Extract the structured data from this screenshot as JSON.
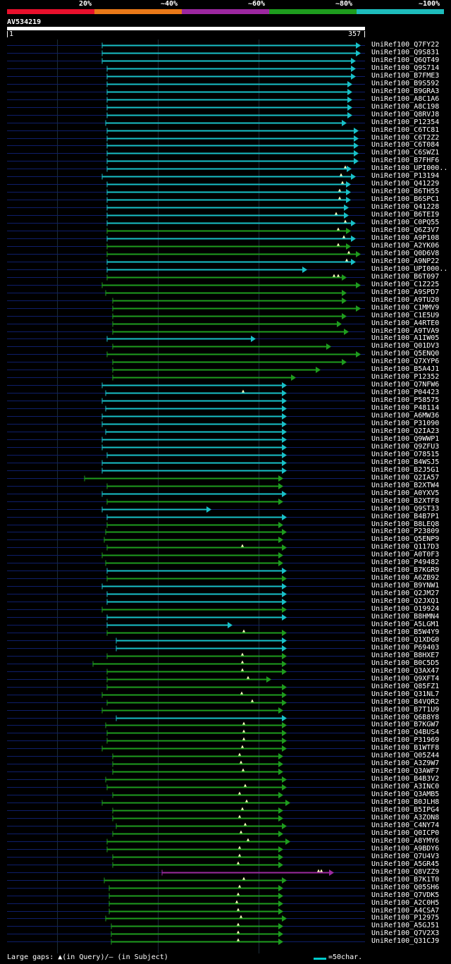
{
  "legend": [
    {
      "label": "20%",
      "color": "#e8102c"
    },
    {
      "label": "~40%",
      "color": "#e87818"
    },
    {
      "label": "~60%",
      "color": "#9c27a0"
    },
    {
      "label": "~80%",
      "color": "#1e9c1e"
    },
    {
      "label": "~100%",
      "color": "#1ebcbc"
    }
  ],
  "query": {
    "id": "AV534219",
    "start": "1",
    "end": "357"
  },
  "footer": {
    "gap_note": "Large gaps: ▲(in Query)/— (in Subject)",
    "scale_note": "=50char."
  },
  "hits": [
    {
      "label": "UniRef100_Q7FY22",
      "s": 145,
      "e": 512,
      "c": "#18c0c8",
      "m": []
    },
    {
      "label": "UniRef100_Q9S831",
      "s": 145,
      "e": 512,
      "c": "#18c0c8",
      "m": []
    },
    {
      "label": "UniRef100_Q6QT49",
      "s": 145,
      "e": 505,
      "c": "#18c0c8",
      "m": []
    },
    {
      "label": "UniRef100_Q9S714",
      "s": 152,
      "e": 505,
      "c": "#18c0c8",
      "m": []
    },
    {
      "label": "UniRef100_B7FME3",
      "s": 152,
      "e": 505,
      "c": "#18c0c8",
      "m": []
    },
    {
      "label": "UniRef100_B9S592",
      "s": 152,
      "e": 500,
      "c": "#18c0c8",
      "m": []
    },
    {
      "label": "UniRef100_B9GRA3",
      "s": 152,
      "e": 500,
      "c": "#18c0c8",
      "m": []
    },
    {
      "label": "UniRef100_A8C1A6",
      "s": 152,
      "e": 500,
      "c": "#18c0c8",
      "m": []
    },
    {
      "label": "UniRef100_A8C198",
      "s": 152,
      "e": 500,
      "c": "#18c0c8",
      "m": []
    },
    {
      "label": "UniRef100_Q8RVJ8",
      "s": 152,
      "e": 500,
      "c": "#18c0c8",
      "m": []
    },
    {
      "label": "UniRef100_P12354",
      "s": 150,
      "e": 492,
      "c": "#18c0c8",
      "m": []
    },
    {
      "label": "UniRef100_C6TC81",
      "s": 152,
      "e": 509,
      "c": "#18c0c8",
      "m": []
    },
    {
      "label": "UniRef100_C6T2Z2",
      "s": 152,
      "e": 509,
      "c": "#18c0c8",
      "m": []
    },
    {
      "label": "UniRef100_C6T084",
      "s": 152,
      "e": 509,
      "c": "#18c0c8",
      "m": []
    },
    {
      "label": "UniRef100_C6SWZ1",
      "s": 152,
      "e": 509,
      "c": "#18c0c8",
      "m": []
    },
    {
      "label": "UniRef100_B7FHF6",
      "s": 152,
      "e": 509,
      "c": "#18c0c8",
      "m": []
    },
    {
      "label": "UniRef100_UPI000..",
      "s": 152,
      "e": 499,
      "c": "#18c0c8",
      "m": [
        490
      ]
    },
    {
      "label": "UniRef100_P13194",
      "s": 145,
      "e": 505,
      "c": "#18c0c8",
      "m": [
        484
      ]
    },
    {
      "label": "UniRef100_Q41229",
      "s": 152,
      "e": 498,
      "c": "#18c0c8",
      "m": [
        486
      ]
    },
    {
      "label": "UniRef100_B6TH55",
      "s": 152,
      "e": 498,
      "c": "#18c0c8",
      "m": [
        482
      ]
    },
    {
      "label": "UniRef100_B6SPC1",
      "s": 152,
      "e": 498,
      "c": "#18c0c8",
      "m": [
        482
      ]
    },
    {
      "label": "UniRef100_Q41228",
      "s": 152,
      "e": 495,
      "c": "#18c0c8",
      "m": []
    },
    {
      "label": "UniRef100_B6TEI9",
      "s": 152,
      "e": 495,
      "c": "#18c0c8",
      "m": [
        477
      ]
    },
    {
      "label": "UniRef100_C0PQ55",
      "s": 152,
      "e": 505,
      "c": "#18c0c8",
      "m": [
        490
      ]
    },
    {
      "label": "UniRef100_Q6Z3V7",
      "s": 152,
      "e": 498,
      "c": "#1e9c1e",
      "m": [
        480
      ]
    },
    {
      "label": "UniRef100_A9P108",
      "s": 152,
      "e": 505,
      "c": "#18c0c8",
      "m": [
        488
      ]
    },
    {
      "label": "UniRef100_A2YK06",
      "s": 152,
      "e": 498,
      "c": "#1e9c1e",
      "m": [
        480
      ]
    },
    {
      "label": "UniRef100_Q0D6V8",
      "s": 152,
      "e": 512,
      "c": "#1e9c1e",
      "m": [
        495
      ]
    },
    {
      "label": "UniRef100_A9NP22",
      "s": 152,
      "e": 505,
      "c": "#18c0c8",
      "m": [
        492
      ]
    },
    {
      "label": "UniRef100_UPI000..",
      "s": 152,
      "e": 436,
      "c": "#18c0c8",
      "m": []
    },
    {
      "label": "UniRef100_B6T097",
      "s": 152,
      "e": 492,
      "c": "#1e9c1e",
      "m": [
        474,
        480
      ]
    },
    {
      "label": "UniRef100_C1Z225",
      "s": 145,
      "e": 512,
      "c": "#1e9c1e",
      "m": []
    },
    {
      "label": "UniRef100_A9SPD7",
      "s": 150,
      "e": 492,
      "c": "#1e9c1e",
      "m": []
    },
    {
      "label": "UniRef100_A9TU20",
      "s": 160,
      "e": 492,
      "c": "#1e9c1e",
      "m": []
    },
    {
      "label": "UniRef100_C1MMV9",
      "s": 160,
      "e": 512,
      "c": "#1e9c1e",
      "m": []
    },
    {
      "label": "UniRef100_C1E5U9",
      "s": 160,
      "e": 492,
      "c": "#1e9c1e",
      "m": []
    },
    {
      "label": "UniRef100_A4RTE0",
      "s": 160,
      "e": 485,
      "c": "#1e9c1e",
      "m": []
    },
    {
      "label": "UniRef100_A9TVA9",
      "s": 160,
      "e": 495,
      "c": "#1e9c1e",
      "m": []
    },
    {
      "label": "UniRef100_A1IW05",
      "s": 152,
      "e": 363,
      "c": "#18c0c8",
      "m": []
    },
    {
      "label": "UniRef100_Q01DV3",
      "s": 160,
      "e": 470,
      "c": "#1e9c1e",
      "m": []
    },
    {
      "label": "UniRef100_Q5ENQ0",
      "s": 152,
      "e": 512,
      "c": "#1e9c1e",
      "m": []
    },
    {
      "label": "UniRef100_Q7XYP6",
      "s": 160,
      "e": 492,
      "c": "#1e9c1e",
      "m": []
    },
    {
      "label": "UniRef100_B5A4J1",
      "s": 160,
      "e": 455,
      "c": "#1e9c1e",
      "m": []
    },
    {
      "label": "UniRef100_P12352",
      "s": 160,
      "e": 420,
      "c": "#1e9c1e",
      "m": []
    },
    {
      "label": "UniRef100_Q7NFW6",
      "s": 145,
      "e": 407,
      "c": "#18c0c8",
      "m": []
    },
    {
      "label": "UniRef100_P04423",
      "s": 150,
      "e": 407,
      "c": "#18c0c8",
      "m": [
        345
      ]
    },
    {
      "label": "UniRef100_P58575",
      "s": 145,
      "e": 407,
      "c": "#18c0c8",
      "m": []
    },
    {
      "label": "UniRef100_P48114",
      "s": 150,
      "e": 407,
      "c": "#18c0c8",
      "m": []
    },
    {
      "label": "UniRef100_A6MW36",
      "s": 145,
      "e": 407,
      "c": "#18c0c8",
      "m": []
    },
    {
      "label": "UniRef100_P31090",
      "s": 145,
      "e": 407,
      "c": "#18c0c8",
      "m": []
    },
    {
      "label": "UniRef100_Q2IA23",
      "s": 150,
      "e": 407,
      "c": "#18c0c8",
      "m": []
    },
    {
      "label": "UniRef100_Q9WWP1",
      "s": 145,
      "e": 407,
      "c": "#18c0c8",
      "m": []
    },
    {
      "label": "UniRef100_Q9ZFU3",
      "s": 145,
      "e": 407,
      "c": "#18c0c8",
      "m": []
    },
    {
      "label": "UniRef100_O78515",
      "s": 152,
      "e": 407,
      "c": "#18c0c8",
      "m": []
    },
    {
      "label": "UniRef100_B4WSJ5",
      "s": 145,
      "e": 407,
      "c": "#18c0c8",
      "m": []
    },
    {
      "label": "UniRef100_B2J5G1",
      "s": 145,
      "e": 407,
      "c": "#18c0c8",
      "m": []
    },
    {
      "label": "UniRef100_Q2IA57",
      "s": 120,
      "e": 402,
      "c": "#1e9c1e",
      "m": []
    },
    {
      "label": "UniRef100_B2XTW4",
      "s": 152,
      "e": 402,
      "c": "#1e9c1e",
      "m": []
    },
    {
      "label": "UniRef100_A0YXV5",
      "s": 145,
      "e": 407,
      "c": "#18c0c8",
      "m": []
    },
    {
      "label": "UniRef100_B2XTF8",
      "s": 152,
      "e": 402,
      "c": "#1e9c1e",
      "m": []
    },
    {
      "label": "UniRef100_Q9ST33",
      "s": 145,
      "e": 300,
      "c": "#18c0c8",
      "m": []
    },
    {
      "label": "UniRef100_B4B7P1",
      "s": 152,
      "e": 407,
      "c": "#18c0c8",
      "m": []
    },
    {
      "label": "UniRef100_B8LEQ8",
      "s": 152,
      "e": 402,
      "c": "#1e9c1e",
      "m": []
    },
    {
      "label": "UniRef100_P23809",
      "s": 150,
      "e": 407,
      "c": "#1e9c1e",
      "m": []
    },
    {
      "label": "UniRef100_Q5ENP9",
      "s": 148,
      "e": 402,
      "c": "#1e9c1e",
      "m": []
    },
    {
      "label": "UniRef100_Q117D3",
      "s": 152,
      "e": 407,
      "c": "#1e9c1e",
      "m": [
        344
      ]
    },
    {
      "label": "UniRef100_A0T0F3",
      "s": 145,
      "e": 402,
      "c": "#1e9c1e",
      "m": []
    },
    {
      "label": "UniRef100_P49482",
      "s": 150,
      "e": 402,
      "c": "#1e9c1e",
      "m": []
    },
    {
      "label": "UniRef100_B7KGR9",
      "s": 152,
      "e": 407,
      "c": "#18c0c8",
      "m": []
    },
    {
      "label": "UniRef100_A6ZB92",
      "s": 152,
      "e": 407,
      "c": "#1e9c1e",
      "m": []
    },
    {
      "label": "UniRef100_B9YNW1",
      "s": 145,
      "e": 407,
      "c": "#18c0c8",
      "m": []
    },
    {
      "label": "UniRef100_Q2JM27",
      "s": 152,
      "e": 407,
      "c": "#18c0c8",
      "m": []
    },
    {
      "label": "UniRef100_Q2JXQ1",
      "s": 152,
      "e": 407,
      "c": "#18c0c8",
      "m": []
    },
    {
      "label": "UniRef100_O19924",
      "s": 145,
      "e": 407,
      "c": "#1e9c1e",
      "m": []
    },
    {
      "label": "UniRef100_B8HMN4",
      "s": 152,
      "e": 407,
      "c": "#18c0c8",
      "m": []
    },
    {
      "label": "UniRef100_A5LGM1",
      "s": 152,
      "e": 330,
      "c": "#18c0c8",
      "m": []
    },
    {
      "label": "UniRef100_B5W4Y9",
      "s": 152,
      "e": 407,
      "c": "#1e9c1e",
      "m": [
        346
      ]
    },
    {
      "label": "UniRef100_Q1XDG0",
      "s": 165,
      "e": 407,
      "c": "#18c0c8",
      "m": []
    },
    {
      "label": "UniRef100_P69403",
      "s": 165,
      "e": 407,
      "c": "#18c0c8",
      "m": []
    },
    {
      "label": "UniRef100_B8HXE7",
      "s": 152,
      "e": 407,
      "c": "#1e9c1e",
      "m": [
        344
      ]
    },
    {
      "label": "UniRef100_B0C5D5",
      "s": 132,
      "e": 407,
      "c": "#1e9c1e",
      "m": [
        344
      ]
    },
    {
      "label": "UniRef100_Q3AX47",
      "s": 152,
      "e": 407,
      "c": "#1e9c1e",
      "m": [
        344
      ]
    },
    {
      "label": "UniRef100_Q9XFT4",
      "s": 152,
      "e": 385,
      "c": "#1e9c1e",
      "m": [
        352
      ]
    },
    {
      "label": "UniRef100_Q85FZ1",
      "s": 152,
      "e": 407,
      "c": "#1e9c1e",
      "m": []
    },
    {
      "label": "UniRef100_Q31NL7",
      "s": 145,
      "e": 407,
      "c": "#1e9c1e",
      "m": [
        343
      ]
    },
    {
      "label": "UniRef100_B4VQR2",
      "s": 152,
      "e": 407,
      "c": "#1e9c1e",
      "m": [
        358
      ]
    },
    {
      "label": "UniRef100_B7T1U9",
      "s": 145,
      "e": 402,
      "c": "#1e9c1e",
      "m": []
    },
    {
      "label": "UniRef100_Q6B8Y8",
      "s": 165,
      "e": 407,
      "c": "#18c0c8",
      "m": []
    },
    {
      "label": "UniRef100_B7KGW7",
      "s": 150,
      "e": 407,
      "c": "#1e9c1e",
      "m": [
        346
      ]
    },
    {
      "label": "UniRef100_Q4BUS4",
      "s": 152,
      "e": 407,
      "c": "#1e9c1e",
      "m": [
        346
      ]
    },
    {
      "label": "UniRef100_P31969",
      "s": 152,
      "e": 407,
      "c": "#1e9c1e",
      "m": [
        346
      ]
    },
    {
      "label": "UniRef100_B1WTF8",
      "s": 145,
      "e": 407,
      "c": "#1e9c1e",
      "m": [
        344
      ]
    },
    {
      "label": "UniRef100_Q05Z44",
      "s": 160,
      "e": 402,
      "c": "#1e9c1e",
      "m": [
        340
      ]
    },
    {
      "label": "UniRef100_A3Z9W7",
      "s": 160,
      "e": 402,
      "c": "#1e9c1e",
      "m": [
        342
      ]
    },
    {
      "label": "UniRef100_Q3AWF7",
      "s": 160,
      "e": 402,
      "c": "#1e9c1e",
      "m": [
        345
      ]
    },
    {
      "label": "UniRef100_B4B3V2",
      "s": 150,
      "e": 407,
      "c": "#1e9c1e",
      "m": []
    },
    {
      "label": "UniRef100_A3INC0",
      "s": 152,
      "e": 407,
      "c": "#1e9c1e",
      "m": [
        348
      ]
    },
    {
      "label": "UniRef100_Q3AMB5",
      "s": 160,
      "e": 402,
      "c": "#1e9c1e",
      "m": [
        340
      ]
    },
    {
      "label": "UniRef100_B0JLH8",
      "s": 145,
      "e": 412,
      "c": "#1e9c1e",
      "m": [
        350
      ]
    },
    {
      "label": "UniRef100_B5IPG4",
      "s": 160,
      "e": 402,
      "c": "#1e9c1e",
      "m": [
        344
      ]
    },
    {
      "label": "UniRef100_A3ZON8",
      "s": 160,
      "e": 402,
      "c": "#1e9c1e",
      "m": [
        340
      ]
    },
    {
      "label": "UniRef100_C4NY74",
      "s": 165,
      "e": 407,
      "c": "#1e9c1e",
      "m": [
        348
      ]
    },
    {
      "label": "UniRef100_Q0ICP0",
      "s": 160,
      "e": 402,
      "c": "#1e9c1e",
      "m": [
        342
      ]
    },
    {
      "label": "UniRef100_A8YMY6",
      "s": 152,
      "e": 412,
      "c": "#1e9c1e",
      "m": [
        352
      ]
    },
    {
      "label": "UniRef100_A9BDY6",
      "s": 152,
      "e": 402,
      "c": "#1e9c1e",
      "m": [
        340
      ]
    },
    {
      "label": "UniRef100_Q7U4V3",
      "s": 160,
      "e": 402,
      "c": "#1e9c1e",
      "m": [
        340
      ]
    },
    {
      "label": "UniRef100_A5GR45",
      "s": 160,
      "e": 402,
      "c": "#1e9c1e",
      "m": [
        338
      ]
    },
    {
      "label": "UniRef100_Q8VZZ9",
      "s": 230,
      "e": 474,
      "c": "#9c2aa0",
      "m": [
        452,
        456
      ]
    },
    {
      "label": "UniRef100_B7K1T0",
      "s": 148,
      "e": 407,
      "c": "#1e9c1e",
      "m": [
        346
      ]
    },
    {
      "label": "UniRef100_Q05SH6",
      "s": 155,
      "e": 402,
      "c": "#1e9c1e",
      "m": [
        340
      ]
    },
    {
      "label": "UniRef100_Q7VDK5",
      "s": 155,
      "e": 402,
      "c": "#1e9c1e",
      "m": [
        338
      ]
    },
    {
      "label": "UniRef100_A2C0H5",
      "s": 155,
      "e": 402,
      "c": "#1e9c1e",
      "m": [
        336
      ]
    },
    {
      "label": "UniRef100_A4CSA7",
      "s": 155,
      "e": 402,
      "c": "#1e9c1e",
      "m": [
        338
      ]
    },
    {
      "label": "UniRef100_P12975",
      "s": 150,
      "e": 407,
      "c": "#1e9c1e",
      "m": [
        342
      ]
    },
    {
      "label": "UniRef100_A5GJ51",
      "s": 158,
      "e": 402,
      "c": "#1e9c1e",
      "m": [
        338
      ]
    },
    {
      "label": "UniRef100_Q7V2X3",
      "s": 158,
      "e": 402,
      "c": "#1e9c1e",
      "m": [
        338
      ]
    },
    {
      "label": "UniRef100_Q31CJ9",
      "s": 158,
      "e": 402,
      "c": "#1e9c1e",
      "m": [
        338
      ]
    }
  ]
}
